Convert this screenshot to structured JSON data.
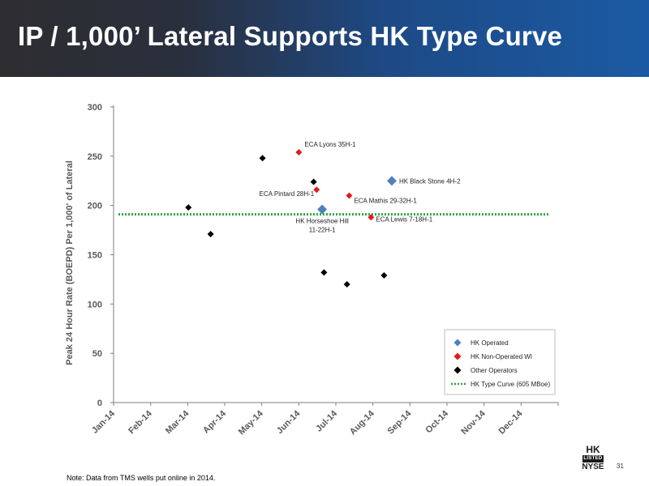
{
  "header": {
    "title": "IP / 1,000’ Lateral Supports HK Type Curve"
  },
  "footer": {
    "note": "Note: Data from TMS wells put online in 2014.",
    "page_number": "31",
    "logo": {
      "line1": "HK",
      "badge": "LISTED",
      "line2": "NYSE"
    }
  },
  "colors": {
    "hk_operated": "#4f81bd",
    "hk_non_operated": "#e31a1c",
    "other_operators": "#000000",
    "type_curve": "#27a844",
    "banner_left": "#2e2e31",
    "banner_right": "#1b5aa3"
  },
  "chart_data": {
    "type": "scatter",
    "title": "",
    "xlabel": "",
    "ylabel": "Peak 24 Hour Rate (BOEPD) Per 1,000' of Lateral",
    "x_categories": [
      "Jan-14",
      "Feb-14",
      "Mar-14",
      "Apr-14",
      "May-14",
      "Jun-14",
      "Jul-14",
      "Aug-14",
      "Sep-14",
      "Oct-14",
      "Nov-14",
      "Dec-14"
    ],
    "ylim": [
      0,
      300
    ],
    "yticks": [
      0,
      50,
      100,
      150,
      200,
      250,
      300
    ],
    "grid": false,
    "legend_position": "bottom-right",
    "series": [
      {
        "name": "HK Operated",
        "marker": "diamond",
        "points": [
          {
            "x": 5.63,
            "y": 196,
            "label": "HK Horseshoe Hill 11-22H-1"
          },
          {
            "x": 7.51,
            "y": 225,
            "label": "HK Black Stone 4H-2"
          }
        ]
      },
      {
        "name": "HK Non-Operated WI",
        "marker": "diamond",
        "points": [
          {
            "x": 5.0,
            "y": 254,
            "label": "ECA Lyons 35H-1"
          },
          {
            "x": 5.48,
            "y": 216,
            "label": "ECA Pintard 28H-1"
          },
          {
            "x": 6.36,
            "y": 210,
            "label": "ECA Mathis 29-32H-1"
          },
          {
            "x": 6.95,
            "y": 188,
            "label": "ECA Lewis 7-18H-1"
          }
        ]
      },
      {
        "name": "Other Operators",
        "marker": "diamond",
        "points": [
          {
            "x": 2.02,
            "y": 198
          },
          {
            "x": 2.62,
            "y": 171
          },
          {
            "x": 4.02,
            "y": 248
          },
          {
            "x": 5.4,
            "y": 224
          },
          {
            "x": 5.68,
            "y": 132
          },
          {
            "x": 6.3,
            "y": 120
          },
          {
            "x": 7.3,
            "y": 129
          }
        ]
      }
    ],
    "reference_lines": [
      {
        "name": "HK Type Curve (605 MBoe)",
        "y": 191,
        "style": "dotted"
      }
    ]
  }
}
